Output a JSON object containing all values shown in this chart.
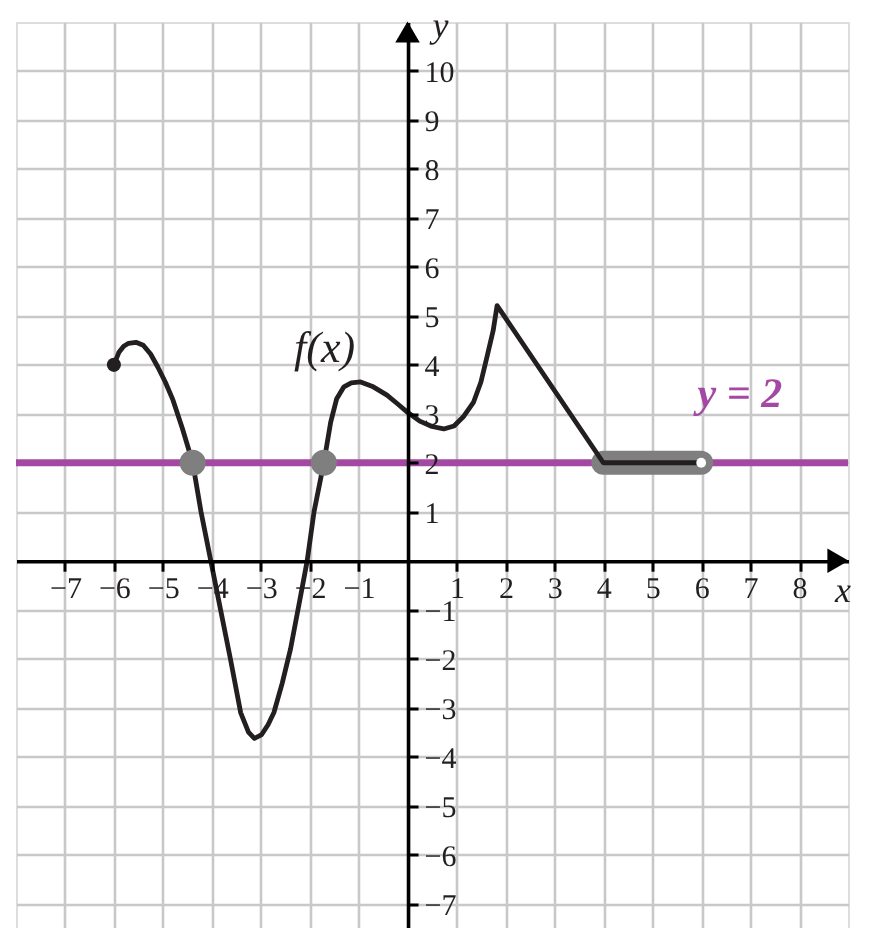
{
  "chart_data": {
    "type": "line",
    "xlabel": "x",
    "ylabel": "y",
    "xlim": [
      -8,
      9
    ],
    "ylim": [
      -7.5,
      11
    ],
    "xticks": [
      -7,
      -6,
      -5,
      -4,
      -3,
      -2,
      -1,
      1,
      2,
      3,
      4,
      5,
      6,
      7,
      8
    ],
    "yticks": [
      -7,
      -6,
      -5,
      -4,
      -3,
      -2,
      -1,
      1,
      2,
      3,
      4,
      5,
      6,
      7,
      8,
      9,
      10
    ],
    "grid": true,
    "ref_lines": [
      {
        "axis": "y",
        "value": 2,
        "label": "y = 2",
        "color": "#a349a4"
      }
    ],
    "series": [
      {
        "color": "#7f7f7f",
        "x": [
          4,
          6
        ],
        "values": [
          2,
          2
        ]
      },
      {
        "name": "f(x)",
        "color": "#231f20",
        "x": [
          -6,
          -5.9,
          -5.8,
          -5.7,
          -5.55,
          -5.4,
          -5.25,
          -5.1,
          -4.95,
          -4.8,
          -4.6,
          -4.39,
          -4.22,
          -4.02,
          -3.82,
          -3.62,
          -3.41,
          -3.25,
          -3.13,
          -2.98,
          -2.85,
          -2.73,
          -2.56,
          -2.39,
          -2.2,
          -2.05,
          -1.91,
          -1.71,
          -1.57,
          -1.45,
          -1.3,
          -1.15,
          -0.96,
          -0.7,
          -0.42,
          -0.2,
          0,
          0.25,
          0.5,
          0.74,
          0.95,
          1.15,
          1.35,
          1.5,
          1.63,
          1.75,
          1.83,
          4,
          6
        ],
        "values": [
          4.0,
          4.25,
          4.38,
          4.44,
          4.46,
          4.4,
          4.22,
          3.95,
          3.65,
          3.3,
          2.7,
          2.0,
          1.0,
          0.0,
          -1.0,
          -2.0,
          -3.1,
          -3.5,
          -3.63,
          -3.55,
          -3.35,
          -3.1,
          -2.5,
          -1.8,
          -0.8,
          0.0,
          1.0,
          2.0,
          2.83,
          3.3,
          3.55,
          3.63,
          3.65,
          3.55,
          3.38,
          3.2,
          3.03,
          2.85,
          2.74,
          2.69,
          2.75,
          2.95,
          3.24,
          3.65,
          4.19,
          4.7,
          5.21,
          2.0,
          2.0
        ]
      },
      {
        "type": "scatter",
        "marker": "circle",
        "color": "#7f7f7f",
        "x": [
          -4.39,
          -1.71
        ],
        "values": [
          2,
          2
        ]
      },
      {
        "type": "scatter",
        "marker": "circle",
        "color": "#231f20",
        "x": [
          -6
        ],
        "values": [
          4
        ]
      },
      {
        "type": "scatter",
        "marker": "circle",
        "color": "#ffffff",
        "x": [
          6
        ],
        "values": [
          2
        ]
      }
    ]
  }
}
